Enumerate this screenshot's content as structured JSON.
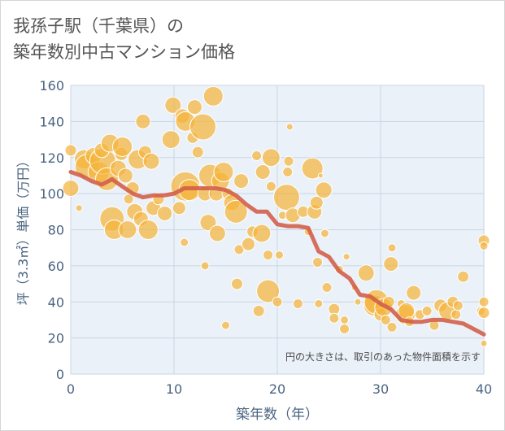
{
  "title_line1": "我孫子駅（千葉県）の",
  "title_line2": "築年数別中古マンション価格",
  "chart_data": {
    "type": "scatter",
    "xlabel": "築年数（年）",
    "ylabel": "坪（3.3㎡）単価（万円）",
    "xlim": [
      0,
      40
    ],
    "ylim": [
      0,
      160
    ],
    "xticks": [
      0,
      10,
      20,
      30,
      40
    ],
    "yticks": [
      0,
      20,
      40,
      60,
      80,
      100,
      120,
      140,
      160
    ],
    "grid": true,
    "annotation": "円の大きさは、取引のあった物件面積を示す",
    "colors": {
      "bubble": "#f5b43c",
      "trend": "#d35f4a",
      "plot_bg": "#eaf1f8",
      "axis_text": "#4a6480"
    },
    "bubbles": [
      {
        "x": 0,
        "y": 124,
        "s": 7
      },
      {
        "x": 0,
        "y": 103,
        "s": 10
      },
      {
        "x": 0.8,
        "y": 92,
        "s": 4
      },
      {
        "x": 1.3,
        "y": 119,
        "s": 12
      },
      {
        "x": 1.6,
        "y": 115,
        "s": 15
      },
      {
        "x": 2.2,
        "y": 121,
        "s": 10
      },
      {
        "x": 2.7,
        "y": 112,
        "s": 13
      },
      {
        "x": 3.1,
        "y": 118,
        "s": 16
      },
      {
        "x": 3.5,
        "y": 108,
        "s": 14
      },
      {
        "x": 3,
        "y": 124,
        "s": 9
      },
      {
        "x": 3.8,
        "y": 128,
        "s": 11
      },
      {
        "x": 4,
        "y": 86,
        "s": 15
      },
      {
        "x": 4.2,
        "y": 80,
        "s": 12
      },
      {
        "x": 4.6,
        "y": 114,
        "s": 10
      },
      {
        "x": 4.9,
        "y": 122,
        "s": 8
      },
      {
        "x": 5,
        "y": 126,
        "s": 12
      },
      {
        "x": 5.3,
        "y": 110,
        "s": 9
      },
      {
        "x": 5.5,
        "y": 80,
        "s": 11
      },
      {
        "x": 5.6,
        "y": 97,
        "s": 6
      },
      {
        "x": 6,
        "y": 103,
        "s": 8
      },
      {
        "x": 6.2,
        "y": 90,
        "s": 10
      },
      {
        "x": 6.5,
        "y": 119,
        "s": 12
      },
      {
        "x": 6.8,
        "y": 86,
        "s": 9
      },
      {
        "x": 7,
        "y": 140,
        "s": 9
      },
      {
        "x": 7.2,
        "y": 123,
        "s": 8
      },
      {
        "x": 7.5,
        "y": 80,
        "s": 12
      },
      {
        "x": 7.8,
        "y": 118,
        "s": 10
      },
      {
        "x": 8,
        "y": 92,
        "s": 9
      },
      {
        "x": 8.5,
        "y": 97,
        "s": 7
      },
      {
        "x": 9.1,
        "y": 89,
        "s": 9
      },
      {
        "x": 9.7,
        "y": 130,
        "s": 11
      },
      {
        "x": 9.9,
        "y": 149,
        "s": 10
      },
      {
        "x": 10.5,
        "y": 92,
        "s": 8
      },
      {
        "x": 10.8,
        "y": 143,
        "s": 9
      },
      {
        "x": 11,
        "y": 73,
        "s": 5
      },
      {
        "x": 11.1,
        "y": 140,
        "s": 12
      },
      {
        "x": 11.1,
        "y": 104,
        "s": 18
      },
      {
        "x": 11.5,
        "y": 102,
        "s": 13
      },
      {
        "x": 11.8,
        "y": 131,
        "s": 7
      },
      {
        "x": 12,
        "y": 148,
        "s": 9
      },
      {
        "x": 12.3,
        "y": 123,
        "s": 7
      },
      {
        "x": 12.8,
        "y": 137,
        "s": 16
      },
      {
        "x": 13,
        "y": 60,
        "s": 5
      },
      {
        "x": 13,
        "y": 100,
        "s": 9
      },
      {
        "x": 13.3,
        "y": 84,
        "s": 10
      },
      {
        "x": 13.5,
        "y": 110,
        "s": 14
      },
      {
        "x": 13.8,
        "y": 154,
        "s": 12
      },
      {
        "x": 14.1,
        "y": 100,
        "s": 9
      },
      {
        "x": 14.2,
        "y": 78,
        "s": 10
      },
      {
        "x": 14.5,
        "y": 107,
        "s": 11
      },
      {
        "x": 14.8,
        "y": 112,
        "s": 12
      },
      {
        "x": 15,
        "y": 27,
        "s": 5
      },
      {
        "x": 15.2,
        "y": 100,
        "s": 7
      },
      {
        "x": 15.6,
        "y": 95,
        "s": 10
      },
      {
        "x": 16,
        "y": 90,
        "s": 14
      },
      {
        "x": 16.1,
        "y": 50,
        "s": 7
      },
      {
        "x": 16.3,
        "y": 69,
        "s": 6
      },
      {
        "x": 16.5,
        "y": 107,
        "s": 9
      },
      {
        "x": 17.2,
        "y": 72,
        "s": 8
      },
      {
        "x": 17.6,
        "y": 79,
        "s": 7
      },
      {
        "x": 18,
        "y": 121,
        "s": 6
      },
      {
        "x": 18.2,
        "y": 35,
        "s": 7
      },
      {
        "x": 18.5,
        "y": 78,
        "s": 11
      },
      {
        "x": 18.6,
        "y": 112,
        "s": 9
      },
      {
        "x": 19.1,
        "y": 46,
        "s": 14
      },
      {
        "x": 19.4,
        "y": 120,
        "s": 11
      },
      {
        "x": 19.1,
        "y": 66,
        "s": 6
      },
      {
        "x": 19.4,
        "y": 104,
        "s": 6
      },
      {
        "x": 20,
        "y": 40,
        "s": 6
      },
      {
        "x": 20.2,
        "y": 66,
        "s": 5
      },
      {
        "x": 20.5,
        "y": 88,
        "s": 5
      },
      {
        "x": 20.9,
        "y": 98,
        "s": 16
      },
      {
        "x": 21,
        "y": 112,
        "s": 6
      },
      {
        "x": 21.1,
        "y": 118,
        "s": 6
      },
      {
        "x": 21.2,
        "y": 137,
        "s": 4
      },
      {
        "x": 21.5,
        "y": 88,
        "s": 9
      },
      {
        "x": 22,
        "y": 39,
        "s": 6
      },
      {
        "x": 22.5,
        "y": 90,
        "s": 7
      },
      {
        "x": 23,
        "y": 79,
        "s": 5
      },
      {
        "x": 23.4,
        "y": 114,
        "s": 13
      },
      {
        "x": 23.6,
        "y": 90,
        "s": 9
      },
      {
        "x": 23.8,
        "y": 95,
        "s": 8
      },
      {
        "x": 23.9,
        "y": 62,
        "s": 6
      },
      {
        "x": 24,
        "y": 39,
        "s": 5
      },
      {
        "x": 24.2,
        "y": 110,
        "s": 3
      },
      {
        "x": 24.5,
        "y": 102,
        "s": 10
      },
      {
        "x": 24.6,
        "y": 78,
        "s": 5
      },
      {
        "x": 24.8,
        "y": 48,
        "s": 6
      },
      {
        "x": 25.5,
        "y": 36,
        "s": 7
      },
      {
        "x": 25.5,
        "y": 31,
        "s": 6
      },
      {
        "x": 26,
        "y": 58,
        "s": 5
      },
      {
        "x": 26.5,
        "y": 25,
        "s": 6
      },
      {
        "x": 26.5,
        "y": 30,
        "s": 5
      },
      {
        "x": 26.7,
        "y": 65,
        "s": 4
      },
      {
        "x": 27.5,
        "y": 48,
        "s": 4
      },
      {
        "x": 27.8,
        "y": 40,
        "s": 4
      },
      {
        "x": 28.6,
        "y": 56,
        "s": 10
      },
      {
        "x": 29,
        "y": 42,
        "s": 6
      },
      {
        "x": 29.4,
        "y": 38,
        "s": 13
      },
      {
        "x": 29.6,
        "y": 40,
        "s": 15
      },
      {
        "x": 30,
        "y": 33,
        "s": 8
      },
      {
        "x": 30.3,
        "y": 37,
        "s": 11
      },
      {
        "x": 30.5,
        "y": 30,
        "s": 6
      },
      {
        "x": 30.8,
        "y": 40,
        "s": 7
      },
      {
        "x": 31,
        "y": 61,
        "s": 9
      },
      {
        "x": 31.1,
        "y": 70,
        "s": 5
      },
      {
        "x": 31.1,
        "y": 26,
        "s": 6
      },
      {
        "x": 32,
        "y": 39,
        "s": 5
      },
      {
        "x": 32.4,
        "y": 33,
        "s": 12
      },
      {
        "x": 32.5,
        "y": 35,
        "s": 10
      },
      {
        "x": 32.8,
        "y": 29,
        "s": 6
      },
      {
        "x": 33.2,
        "y": 45,
        "s": 9
      },
      {
        "x": 33.8,
        "y": 33,
        "s": 6
      },
      {
        "x": 34.5,
        "y": 35,
        "s": 6
      },
      {
        "x": 35.2,
        "y": 27,
        "s": 6
      },
      {
        "x": 35.8,
        "y": 38,
        "s": 8
      },
      {
        "x": 36.5,
        "y": 35,
        "s": 11
      },
      {
        "x": 37,
        "y": 40,
        "s": 7
      },
      {
        "x": 37.3,
        "y": 33,
        "s": 6
      },
      {
        "x": 37.5,
        "y": 38,
        "s": 6
      },
      {
        "x": 38,
        "y": 54,
        "s": 7
      },
      {
        "x": 39.7,
        "y": 35,
        "s": 5
      },
      {
        "x": 40,
        "y": 74,
        "s": 7
      },
      {
        "x": 40,
        "y": 71,
        "s": 5
      },
      {
        "x": 40,
        "y": 40,
        "s": 6
      },
      {
        "x": 40,
        "y": 34,
        "s": 7
      },
      {
        "x": 40,
        "y": 17,
        "s": 4
      }
    ],
    "trend": [
      {
        "x": 0,
        "y": 112
      },
      {
        "x": 1,
        "y": 110
      },
      {
        "x": 2,
        "y": 107
      },
      {
        "x": 3,
        "y": 105
      },
      {
        "x": 4,
        "y": 108
      },
      {
        "x": 5,
        "y": 104
      },
      {
        "x": 6,
        "y": 100
      },
      {
        "x": 7,
        "y": 98
      },
      {
        "x": 8,
        "y": 99
      },
      {
        "x": 9,
        "y": 99
      },
      {
        "x": 10,
        "y": 100
      },
      {
        "x": 11,
        "y": 103
      },
      {
        "x": 12,
        "y": 103
      },
      {
        "x": 13,
        "y": 103
      },
      {
        "x": 14,
        "y": 103
      },
      {
        "x": 15,
        "y": 102
      },
      {
        "x": 16,
        "y": 99
      },
      {
        "x": 17,
        "y": 94
      },
      {
        "x": 18,
        "y": 90
      },
      {
        "x": 19,
        "y": 90
      },
      {
        "x": 20,
        "y": 83
      },
      {
        "x": 21,
        "y": 82
      },
      {
        "x": 22,
        "y": 82
      },
      {
        "x": 23,
        "y": 81
      },
      {
        "x": 24,
        "y": 68
      },
      {
        "x": 25,
        "y": 65
      },
      {
        "x": 26,
        "y": 57
      },
      {
        "x": 27,
        "y": 53
      },
      {
        "x": 28,
        "y": 44
      },
      {
        "x": 29,
        "y": 43
      },
      {
        "x": 30,
        "y": 39
      },
      {
        "x": 31,
        "y": 36
      },
      {
        "x": 32,
        "y": 30
      },
      {
        "x": 33,
        "y": 29
      },
      {
        "x": 34,
        "y": 29
      },
      {
        "x": 35,
        "y": 30
      },
      {
        "x": 36,
        "y": 30
      },
      {
        "x": 37,
        "y": 29
      },
      {
        "x": 38,
        "y": 28
      },
      {
        "x": 39,
        "y": 25
      },
      {
        "x": 40,
        "y": 22
      }
    ]
  }
}
